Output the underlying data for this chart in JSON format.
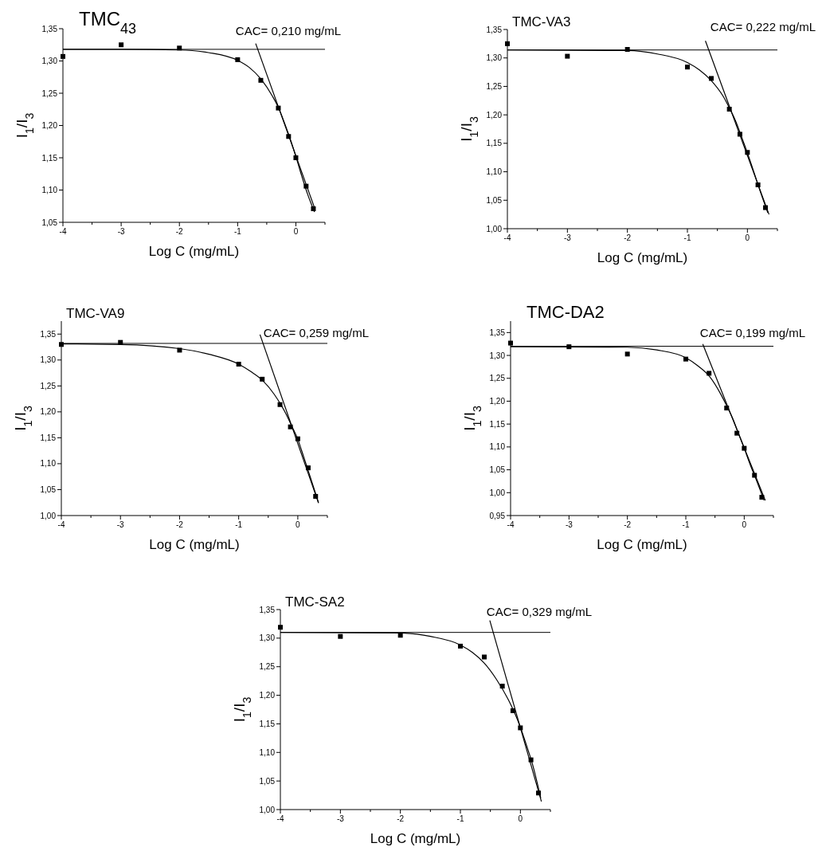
{
  "chart_data": [
    {
      "type": "scatter",
      "title": "TMC$_{43}$",
      "xlabel": "Log C (mg/mL)",
      "ylabel": "I$_{1}$/I$_{3}$",
      "annotations": [
        "CAC= 0,210 mg/mL"
      ],
      "grid": false,
      "xlim": [
        -4,
        0.5
      ],
      "ylim": [
        1.05,
        1.35
      ],
      "xticks": [
        -4,
        {
          "value": -3.5,
          "label": null
        },
        -3,
        {
          "value": -2.5,
          "label": null
        },
        -2,
        {
          "value": -1.5,
          "label": null
        },
        -1,
        {
          "value": -0.5,
          "label": null
        },
        0,
        {
          "value": 0.5,
          "label": null
        }
      ],
      "yticks": [
        {
          "value": 1.05,
          "label": "1,05"
        },
        {
          "value": 1.1,
          "label": "1,10"
        },
        {
          "value": 1.15,
          "label": "1,15"
        },
        {
          "value": 1.2,
          "label": "1,20"
        },
        {
          "value": 1.25,
          "label": "1,25"
        },
        {
          "value": 1.3,
          "label": "1,30"
        },
        {
          "value": 1.35,
          "label": "1,35"
        }
      ],
      "ref_lines": [
        {
          "axis": "y",
          "value": 1.318,
          "color": "#000000"
        }
      ],
      "series": [
        {
          "marker": "square",
          "color": "#000000",
          "x": [
            -4,
            -3,
            -2,
            -1,
            -0.602,
            -0.301,
            -0.125,
            0,
            0.176,
            0.301
          ],
          "values": [
            1.307,
            1.325,
            1.32,
            1.302,
            1.27,
            1.227,
            1.183,
            1.15,
            1.106,
            1.071
          ]
        },
        {
          "type": "line",
          "marker": "none",
          "color": "#000000",
          "x": [
            -4,
            -3,
            -2,
            -1.5,
            -1,
            -0.8,
            -0.6,
            -0.4,
            -0.3,
            -0.2,
            -0.1,
            0,
            0.1,
            0.2,
            0.32
          ],
          "values": [
            1.318,
            1.318,
            1.317,
            1.313,
            1.301,
            1.29,
            1.272,
            1.245,
            1.228,
            1.205,
            1.18,
            1.152,
            1.122,
            1.094,
            1.066
          ]
        },
        {
          "type": "line",
          "marker": "none",
          "color": "#000000",
          "x": [
            -0.69,
            0.33
          ],
          "values": [
            1.327,
            1.07
          ]
        }
      ]
    },
    {
      "type": "scatter",
      "title": "TMC-VA3",
      "xlabel": "Log C (mg/mL)",
      "ylabel": "I$_{1}$/I$_{3}$",
      "annotations": [
        "CAC= 0,222 mg/mL"
      ],
      "grid": false,
      "xlim": [
        -4,
        0.5
      ],
      "ylim": [
        1.0,
        1.35
      ],
      "xticks": [
        -4,
        {
          "value": -3.5,
          "label": null
        },
        -3,
        {
          "value": -2.5,
          "label": null
        },
        -2,
        {
          "value": -1.5,
          "label": null
        },
        -1,
        {
          "value": -0.5,
          "label": null
        },
        0,
        {
          "value": 0.5,
          "label": null
        }
      ],
      "yticks": [
        {
          "value": 1.0,
          "label": "1,00"
        },
        {
          "value": 1.05,
          "label": "1,05"
        },
        {
          "value": 1.1,
          "label": "1,10"
        },
        {
          "value": 1.15,
          "label": "1,15"
        },
        {
          "value": 1.2,
          "label": "1,20"
        },
        {
          "value": 1.25,
          "label": "1,25"
        },
        {
          "value": 1.3,
          "label": "1,30"
        },
        {
          "value": 1.35,
          "label": "1,35"
        }
      ],
      "ref_lines": [
        {
          "axis": "y",
          "value": 1.314,
          "color": "#000000"
        }
      ],
      "series": [
        {
          "marker": "square",
          "color": "#000000",
          "x": [
            -4,
            -3,
            -2,
            -1,
            -0.602,
            -0.301,
            -0.125,
            0,
            0.176,
            0.301
          ],
          "values": [
            1.325,
            1.303,
            1.315,
            1.284,
            1.264,
            1.21,
            1.166,
            1.134,
            1.077,
            1.037
          ]
        },
        {
          "type": "line",
          "marker": "none",
          "color": "#000000",
          "x": [
            -4,
            -2,
            -1.5,
            -1,
            -0.8,
            -0.6,
            -0.4,
            -0.3,
            -0.2,
            -0.1,
            0,
            0.1,
            0.2,
            0.34
          ],
          "values": [
            1.314,
            1.313,
            1.307,
            1.292,
            1.279,
            1.26,
            1.232,
            1.212,
            1.19,
            1.162,
            1.133,
            1.102,
            1.07,
            1.028
          ]
        },
        {
          "type": "line",
          "marker": "none",
          "color": "#000000",
          "x": [
            -0.7,
            0.36
          ],
          "values": [
            1.33,
            1.025
          ]
        }
      ]
    },
    {
      "type": "scatter",
      "title": "TMC-VA9",
      "xlabel": "Log C (mg/mL)",
      "ylabel": "I$_{1}$/I$_{3}$",
      "annotations": [
        "CAC= 0,259 mg/mL"
      ],
      "grid": false,
      "xlim": [
        -4,
        0.5
      ],
      "ylim": [
        1.0,
        1.375
      ],
      "xticks": [
        -4,
        {
          "value": -3.5,
          "label": null
        },
        -3,
        {
          "value": -2.5,
          "label": null
        },
        -2,
        {
          "value": -1.5,
          "label": null
        },
        -1,
        {
          "value": -0.5,
          "label": null
        },
        0,
        {
          "value": 0.5,
          "label": null
        }
      ],
      "yticks": [
        {
          "value": 1.0,
          "label": "1,00"
        },
        {
          "value": 1.05,
          "label": "1,05"
        },
        {
          "value": 1.1,
          "label": "1,10"
        },
        {
          "value": 1.15,
          "label": "1,15"
        },
        {
          "value": 1.2,
          "label": "1,20"
        },
        {
          "value": 1.25,
          "label": "1,25"
        },
        {
          "value": 1.3,
          "label": "1,30"
        },
        {
          "value": 1.35,
          "label": "1,35"
        }
      ],
      "ref_lines": [
        {
          "axis": "y",
          "value": 1.332,
          "color": "#000000"
        }
      ],
      "series": [
        {
          "marker": "square",
          "color": "#000000",
          "x": [
            -4,
            -3,
            -2,
            -1,
            -0.602,
            -0.301,
            -0.125,
            0,
            0.176,
            0.301
          ],
          "values": [
            1.33,
            1.334,
            1.319,
            1.292,
            1.263,
            1.214,
            1.171,
            1.148,
            1.092,
            1.037
          ]
        },
        {
          "type": "line",
          "marker": "none",
          "color": "#000000",
          "x": [
            -4,
            -3,
            -2,
            -1.5,
            -1,
            -0.8,
            -0.6,
            -0.4,
            -0.2,
            -0.1,
            0,
            0.1,
            0.2,
            0.35
          ],
          "values": [
            1.331,
            1.33,
            1.322,
            1.311,
            1.292,
            1.278,
            1.261,
            1.234,
            1.196,
            1.172,
            1.147,
            1.113,
            1.078,
            1.025
          ]
        },
        {
          "type": "line",
          "marker": "none",
          "color": "#000000",
          "x": [
            -0.64,
            0.35
          ],
          "values": [
            1.349,
            1.024
          ]
        }
      ]
    },
    {
      "type": "scatter",
      "title": "TMC-DA2",
      "xlabel": "Log C (mg/mL)",
      "ylabel": "I$_{1}$/I$_{3}$",
      "annotations": [
        "CAC= 0,199 mg/mL"
      ],
      "grid": false,
      "xlim": [
        -4,
        0.5
      ],
      "ylim": [
        0.95,
        1.375
      ],
      "xticks": [
        -4,
        {
          "value": -3.5,
          "label": null
        },
        -3,
        {
          "value": -2.5,
          "label": null
        },
        -2,
        {
          "value": -1.5,
          "label": null
        },
        -1,
        {
          "value": -0.5,
          "label": null
        },
        0,
        {
          "value": 0.5,
          "label": null
        }
      ],
      "yticks": [
        {
          "value": 0.95,
          "label": "0,95"
        },
        {
          "value": 1.0,
          "label": "1,00"
        },
        {
          "value": 1.05,
          "label": "1,05"
        },
        {
          "value": 1.1,
          "label": "1,10"
        },
        {
          "value": 1.15,
          "label": "1,15"
        },
        {
          "value": 1.2,
          "label": "1,20"
        },
        {
          "value": 1.25,
          "label": "1,25"
        },
        {
          "value": 1.3,
          "label": "1,30"
        },
        {
          "value": 1.35,
          "label": "1,35"
        }
      ],
      "ref_lines": [
        {
          "axis": "y",
          "value": 1.32,
          "color": "#000000"
        }
      ],
      "series": [
        {
          "marker": "square",
          "color": "#000000",
          "x": [
            -4,
            -3,
            -2,
            -1,
            -0.602,
            -0.301,
            -0.125,
            0,
            0.176,
            0.301
          ],
          "values": [
            1.327,
            1.319,
            1.303,
            1.292,
            1.261,
            1.185,
            1.13,
            1.097,
            1.038,
            0.99
          ]
        },
        {
          "type": "line",
          "marker": "none",
          "color": "#000000",
          "x": [
            -4,
            -2,
            -1.5,
            -1,
            -0.8,
            -0.6,
            -0.4,
            -0.3,
            -0.2,
            -0.1,
            0,
            0.1,
            0.2,
            0.34
          ],
          "values": [
            1.319,
            1.318,
            1.312,
            1.295,
            1.278,
            1.255,
            1.215,
            1.19,
            1.163,
            1.13,
            1.097,
            1.062,
            1.03,
            0.983
          ]
        },
        {
          "type": "line",
          "marker": "none",
          "color": "#000000",
          "x": [
            -0.71,
            0.36
          ],
          "values": [
            1.325,
            0.983
          ]
        }
      ]
    },
    {
      "type": "scatter",
      "title": "TMC-SA2",
      "xlabel": "Log C (mg/mL)",
      "ylabel": "I$_{1}$/I$_{3}$",
      "annotations": [
        "CAC= 0,329 mg/mL"
      ],
      "grid": false,
      "xlim": [
        -4,
        0.5
      ],
      "ylim": [
        1.0,
        1.35
      ],
      "xticks": [
        -4,
        {
          "value": -3.5,
          "label": null
        },
        -3,
        {
          "value": -2.5,
          "label": null
        },
        -2,
        {
          "value": -1.5,
          "label": null
        },
        -1,
        {
          "value": -0.5,
          "label": null
        },
        0,
        {
          "value": 0.5,
          "label": null
        }
      ],
      "yticks": [
        {
          "value": 1.0,
          "label": "1,00"
        },
        {
          "value": 1.05,
          "label": "1,05"
        },
        {
          "value": 1.1,
          "label": "1,10"
        },
        {
          "value": 1.15,
          "label": "1,15"
        },
        {
          "value": 1.2,
          "label": "1,20"
        },
        {
          "value": 1.25,
          "label": "1,25"
        },
        {
          "value": 1.3,
          "label": "1,30"
        },
        {
          "value": 1.35,
          "label": "1,35"
        }
      ],
      "ref_lines": [
        {
          "axis": "y",
          "value": 1.31,
          "color": "#000000"
        }
      ],
      "series": [
        {
          "marker": "square",
          "color": "#000000",
          "x": [
            -4,
            -3,
            -2,
            -1,
            -0.602,
            -0.301,
            -0.125,
            0,
            0.176,
            0.301
          ],
          "values": [
            1.319,
            1.303,
            1.305,
            1.286,
            1.267,
            1.216,
            1.173,
            1.143,
            1.087,
            1.029
          ]
        },
        {
          "type": "line",
          "marker": "none",
          "color": "#000000",
          "x": [
            -4,
            -2,
            -1.5,
            -1,
            -0.8,
            -0.6,
            -0.4,
            -0.2,
            -0.1,
            0,
            0.1,
            0.2,
            0.34
          ],
          "values": [
            1.31,
            1.309,
            1.303,
            1.288,
            1.275,
            1.256,
            1.228,
            1.192,
            1.17,
            1.144,
            1.113,
            1.08,
            1.02
          ]
        },
        {
          "type": "line",
          "marker": "none",
          "color": "#000000",
          "x": [
            -0.51,
            0.35
          ],
          "values": [
            1.331,
            1.014
          ]
        }
      ]
    }
  ]
}
